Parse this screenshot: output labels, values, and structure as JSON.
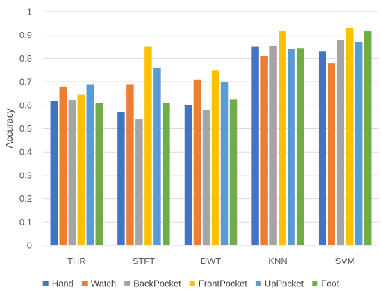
{
  "chart_data": {
    "type": "bar",
    "categories": [
      "THR",
      "STFT",
      "DWT",
      "KNN",
      "SVM"
    ],
    "series": [
      {
        "name": "Hand",
        "color": "#4472C4",
        "values": [
          0.62,
          0.57,
          0.6,
          0.85,
          0.83
        ]
      },
      {
        "name": "Watch",
        "color": "#ED7D31",
        "values": [
          0.68,
          0.69,
          0.71,
          0.81,
          0.78
        ]
      },
      {
        "name": "BackPocket",
        "color": "#A5A5A5",
        "values": [
          0.623,
          0.54,
          0.58,
          0.855,
          0.88
        ]
      },
      {
        "name": "FrontPocket",
        "color": "#FFC000",
        "values": [
          0.645,
          0.85,
          0.75,
          0.92,
          0.93
        ]
      },
      {
        "name": "UpPocket",
        "color": "#5B9BD5",
        "values": [
          0.69,
          0.76,
          0.7,
          0.84,
          0.87
        ]
      },
      {
        "name": "Foot",
        "color": "#70AD47",
        "values": [
          0.61,
          0.61,
          0.625,
          0.845,
          0.92
        ]
      }
    ],
    "ylabel": "Accuracy",
    "ylim": [
      0,
      1
    ],
    "yticks": [
      "0",
      "0.1",
      "0.2",
      "0.3",
      "0.4",
      "0.5",
      "0.6",
      "0.7",
      "0.8",
      "0.9",
      "1"
    ],
    "grid": true,
    "legend_position": "bottom"
  }
}
